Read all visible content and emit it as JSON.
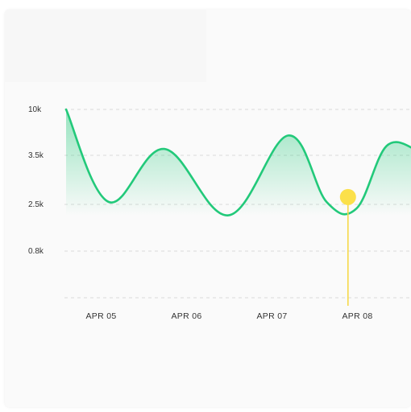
{
  "colors": {
    "line": "#22c97a",
    "fill_top": "#22c97a",
    "marker": "#fbe04a",
    "marker_line": "#f6d94a",
    "grid": "#d9d9d9",
    "text": "#333333"
  },
  "chart_data": {
    "type": "area",
    "title": "",
    "xlabel": "",
    "ylabel": "",
    "grid": "horizontal-dashed",
    "y_ticks": [
      "10k",
      "3.5k",
      "2.5k",
      "0.8k"
    ],
    "x_ticks": [
      "APR 05",
      "APR 06",
      "APR 07",
      "APR 08"
    ],
    "x_tick_positions": [
      0.25,
      1.25,
      2.25,
      3.25
    ],
    "series": [
      {
        "x": [
          0,
          0.5,
          1.15,
          1.9,
          2.6,
          3.05,
          3.4,
          3.75,
          4.1
        ],
        "y": [
          10,
          2.55,
          4.4,
          2.1,
          6.3,
          2.55,
          2.35,
          4.8,
          4.3
        ]
      }
    ],
    "highlight": {
      "x": 3.3,
      "y": 2.65
    }
  }
}
